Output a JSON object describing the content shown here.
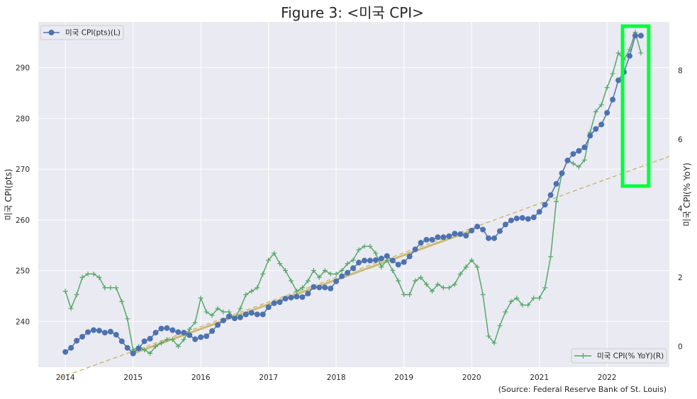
{
  "chart_data": {
    "type": "line",
    "title": "Figure 3: <미국 CPI>",
    "source": "(Source: Federal Reserve Bank of St. Louis)",
    "ylabel_left": "미국 CPI(pts)",
    "ylabel_right": "미국 CPI(% YoY)",
    "x_ticks": [
      "2014",
      "2015",
      "2016",
      "2017",
      "2018",
      "2019",
      "2020",
      "2021",
      "2022"
    ],
    "x_range": [
      2013.6,
      2022.92
    ],
    "ylim_left": [
      231.0,
      299.0
    ],
    "ylim_right": [
      -0.6,
      9.4
    ],
    "y_ticks_left": [
      240,
      250,
      260,
      270,
      280,
      290
    ],
    "y_ticks_right": [
      0,
      2,
      4,
      6,
      8
    ],
    "legend_left": {
      "label": "미국 CPI(pts)(L)",
      "placement": "top-left"
    },
    "legend_right": {
      "label": "미국 CPI(% YoY)(R)",
      "placement": "bottom-right"
    },
    "series": [
      {
        "name": "미국 CPI(pts)(L)",
        "axis": "left",
        "color": "#4c72b0",
        "marker": "circle",
        "start": "2014-01",
        "values": [
          234.0,
          234.8,
          236.2,
          237.0,
          237.9,
          238.3,
          238.2,
          237.8,
          238.0,
          237.4,
          236.1,
          234.8,
          233.7,
          234.7,
          236.1,
          236.6,
          237.8,
          238.6,
          238.7,
          238.3,
          237.9,
          237.8,
          237.3,
          236.5,
          236.9,
          237.1,
          238.1,
          239.3,
          240.2,
          241.0,
          240.6,
          240.8,
          241.4,
          241.7,
          241.4,
          241.4,
          242.8,
          243.6,
          243.8,
          244.5,
          244.7,
          244.9,
          244.8,
          245.5,
          246.8,
          246.7,
          246.7,
          246.5,
          247.9,
          248.9,
          249.6,
          250.5,
          251.6,
          252.0,
          252.0,
          252.1,
          252.4,
          252.9,
          252.0,
          251.2,
          251.7,
          252.8,
          254.2,
          255.5,
          256.1,
          256.1,
          256.6,
          256.6,
          256.8,
          257.3,
          257.2,
          256.9,
          257.9,
          258.7,
          258.1,
          256.4,
          256.4,
          257.8,
          259.1,
          259.9,
          260.3,
          260.4,
          260.2,
          260.5,
          261.6,
          263.0,
          264.9,
          267.1,
          269.2,
          271.7,
          273.0,
          273.6,
          274.3,
          276.6,
          277.9,
          278.8,
          281.1,
          283.7,
          287.5,
          289.1,
          292.3,
          296.3,
          296.3
        ]
      },
      {
        "name": "미국 CPI(% YoY)(R)",
        "axis": "right",
        "color": "#55a868",
        "marker": "plus",
        "start": "2014-01",
        "values": [
          1.6,
          1.1,
          1.5,
          2.0,
          2.1,
          2.1,
          2.0,
          1.7,
          1.7,
          1.7,
          1.3,
          0.8,
          -0.1,
          0.0,
          -0.1,
          -0.2,
          0.0,
          0.1,
          0.2,
          0.2,
          0.0,
          0.2,
          0.5,
          0.7,
          1.4,
          1.0,
          0.9,
          1.1,
          1.0,
          1.0,
          0.8,
          1.1,
          1.5,
          1.6,
          1.7,
          2.1,
          2.5,
          2.7,
          2.4,
          2.2,
          1.9,
          1.6,
          1.7,
          1.9,
          2.2,
          2.0,
          2.2,
          2.1,
          2.1,
          2.2,
          2.4,
          2.5,
          2.8,
          2.9,
          2.9,
          2.7,
          2.3,
          2.5,
          2.2,
          1.9,
          1.5,
          1.5,
          1.9,
          2.0,
          1.8,
          1.6,
          1.8,
          1.7,
          1.7,
          1.8,
          2.1,
          2.3,
          2.5,
          2.3,
          1.5,
          0.3,
          0.1,
          0.6,
          1.0,
          1.3,
          1.4,
          1.2,
          1.2,
          1.4,
          1.4,
          1.7,
          2.6,
          4.2,
          5.0,
          5.4,
          5.3,
          5.2,
          5.4,
          6.2,
          6.8,
          7.0,
          7.5,
          7.9,
          8.5,
          8.3,
          8.6,
          9.1,
          8.5
        ]
      }
    ],
    "trend_solid": {
      "axis": "left",
      "color": "#ccb974",
      "from": [
        "2015-01",
        233.7
      ],
      "to": [
        "2020-01",
        257.9
      ]
    },
    "trend_dashed": {
      "axis": "left",
      "color": "#ccb974",
      "from": [
        "2013-12",
        228.9
      ],
      "to": [
        "2022-12",
        272.5
      ]
    },
    "highlight_box": {
      "color": "#00ff3a",
      "from": "2022-04",
      "to": "2022-08"
    }
  }
}
